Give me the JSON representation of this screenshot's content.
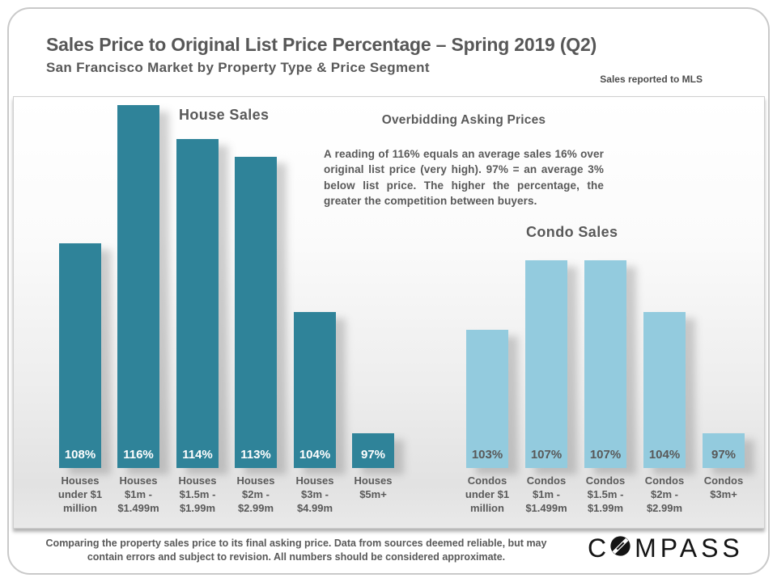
{
  "header": {
    "title": "Sales Price to Original List Price Percentage – Spring 2019 (Q2)",
    "subtitle": "San Francisco Market by Property Type & Price Segment",
    "note": "Sales reported to MLS"
  },
  "annotation": {
    "heading": "Overbidding Asking Prices",
    "body": "A reading of 116% equals an average sales 16% over original list price (very high). 97% = an average 3% below list price. The higher the percentage, the greater the competition between buyers."
  },
  "chart_data": {
    "type": "bar",
    "title": "Sales Price to Original List Price Percentage – Spring 2019 (Q2)",
    "subtitle": "San Francisco Market by Property Type & Price Segment",
    "unit": "%",
    "ylim": [
      95,
      117
    ],
    "grid": false,
    "value_labels": "inside bar base",
    "series": [
      {
        "name": "House Sales",
        "color": "#2F8399",
        "value_label_color": "#ffffff",
        "categories": [
          [
            "Houses",
            "under $1",
            "million"
          ],
          [
            "Houses",
            "$1m -",
            "$1.499m"
          ],
          [
            "Houses",
            "$1.5m -",
            "$1.99m"
          ],
          [
            "Houses",
            "$2m -",
            "$2.99m"
          ],
          [
            "Houses",
            "$3m -",
            "$4.99m"
          ],
          [
            "Houses",
            "$5m+"
          ]
        ],
        "values": [
          108,
          116,
          114,
          113,
          104,
          97
        ]
      },
      {
        "name": "Condo Sales",
        "color": "#93CBDE",
        "value_label_color": "#595959",
        "categories": [
          [
            "Condos",
            "under $1",
            "million"
          ],
          [
            "Condos",
            "$1m -",
            "$1.499m"
          ],
          [
            "Condos",
            "$1.5m -",
            "$1.99m"
          ],
          [
            "Condos",
            "$2m -",
            "$2.99m"
          ],
          [
            "Condos",
            "$3m+"
          ]
        ],
        "values": [
          103,
          107,
          107,
          104,
          97
        ]
      }
    ]
  },
  "footer": {
    "disclaimer": "Comparing the property sales price to its final asking price. Data from sources deemed reliable, but may contain errors and subject to revision. All numbers should be considered approximate.",
    "brand_prefix": "C",
    "brand_suffix": "MPASS",
    "brand": "COMPASS"
  }
}
